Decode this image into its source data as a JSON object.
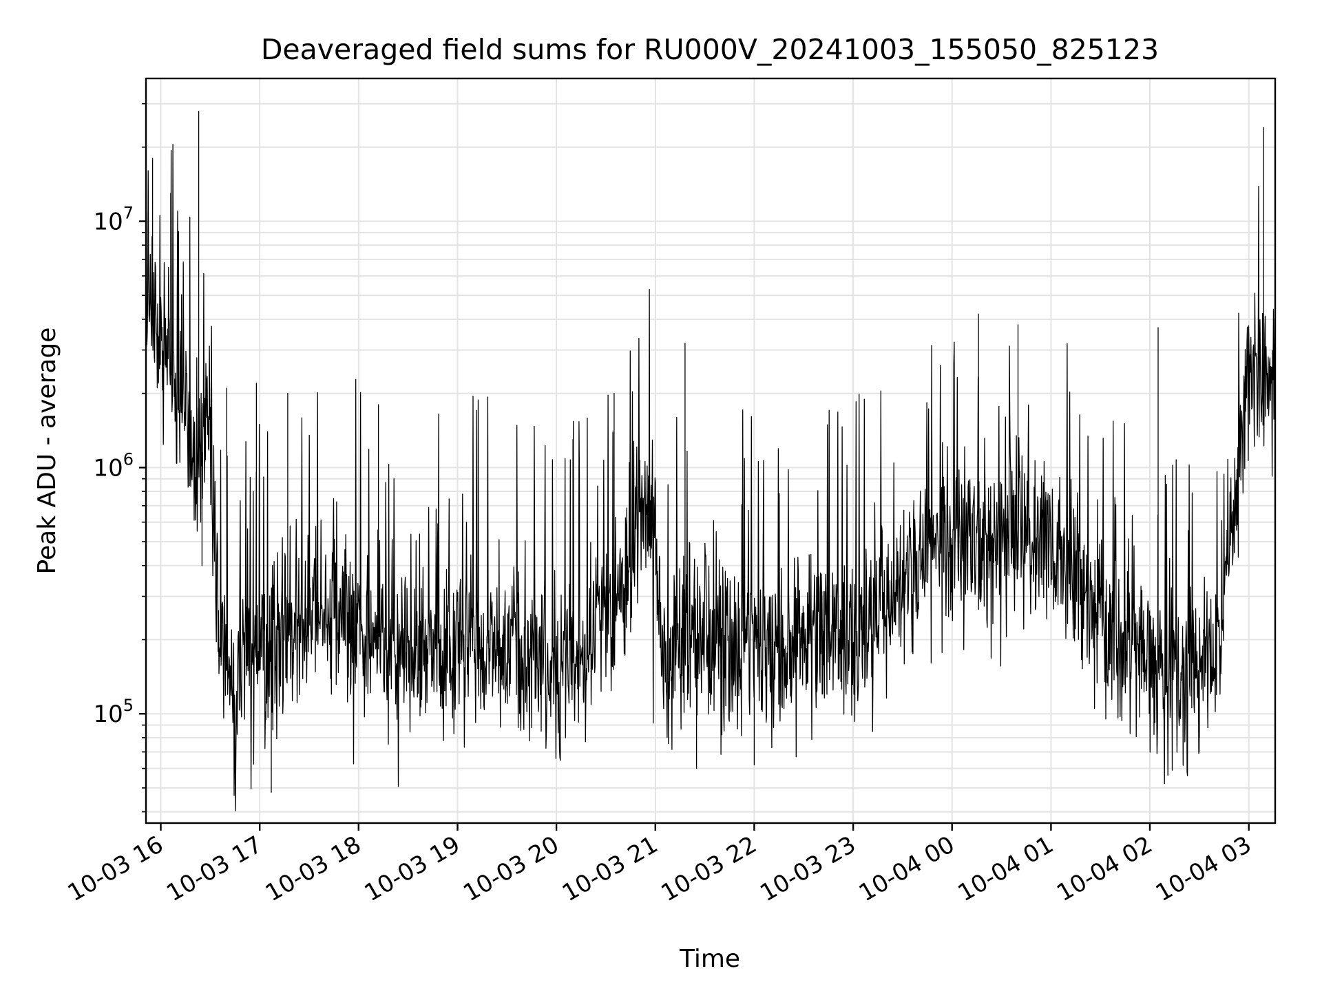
{
  "chart_data": {
    "type": "line",
    "title": "Deaveraged field sums for RU000V_20241003_155050_825123",
    "xlabel": "Time",
    "ylabel": "Peak ADU - average",
    "yscale": "log",
    "grid": true,
    "legend": "none",
    "line_color": "#000000",
    "xlim": [
      "2024-10-03 15:51",
      "2024-10-04 03:16"
    ],
    "ylim": [
      36000,
      38000000
    ],
    "x_ticks": [
      "10-03 16",
      "10-03 17",
      "10-03 18",
      "10-03 19",
      "10-03 20",
      "10-03 21",
      "10-03 22",
      "10-03 23",
      "10-04 00",
      "10-04 01",
      "10-04 02",
      "10-04 03"
    ],
    "y_ticks": [
      {
        "base": "10",
        "exp": "5",
        "value": 100000
      },
      {
        "base": "10",
        "exp": "6",
        "value": 1000000
      },
      {
        "base": "10",
        "exp": "7",
        "value": 10000000
      }
    ],
    "series": [
      {
        "x": [
          "2024-10-03 15:51",
          "2024-10-03 15:55",
          "2024-10-03 16:00",
          "2024-10-03 16:05",
          "2024-10-03 16:10",
          "2024-10-03 16:15",
          "2024-10-03 16:20",
          "2024-10-03 16:24",
          "2024-10-03 16:27",
          "2024-10-03 16:30",
          "2024-10-03 16:33",
          "2024-10-03 16:36",
          "2024-10-03 16:40",
          "2024-10-03 16:45",
          "2024-10-03 16:50",
          "2024-10-03 16:55",
          "2024-10-03 17:00",
          "2024-10-03 17:10",
          "2024-10-03 17:20",
          "2024-10-03 17:30",
          "2024-10-03 17:40",
          "2024-10-03 17:50",
          "2024-10-03 18:00",
          "2024-10-03 18:15",
          "2024-10-03 18:30",
          "2024-10-03 18:45",
          "2024-10-03 19:00",
          "2024-10-03 19:15",
          "2024-10-03 19:30",
          "2024-10-03 19:45",
          "2024-10-03 20:00",
          "2024-10-03 20:15",
          "2024-10-03 20:30",
          "2024-10-03 20:45",
          "2024-10-03 20:50",
          "2024-10-03 21:00",
          "2024-10-03 21:05",
          "2024-10-03 21:15",
          "2024-10-03 21:30",
          "2024-10-03 21:45",
          "2024-10-03 22:00",
          "2024-10-03 22:15",
          "2024-10-03 22:30",
          "2024-10-03 22:45",
          "2024-10-03 23:00",
          "2024-10-03 23:15",
          "2024-10-03 23:30",
          "2024-10-03 23:45",
          "2024-10-04 00:00",
          "2024-10-04 00:15",
          "2024-10-04 00:30",
          "2024-10-04 00:45",
          "2024-10-04 01:00",
          "2024-10-04 01:15",
          "2024-10-04 01:30",
          "2024-10-04 01:45",
          "2024-10-04 02:00",
          "2024-10-04 02:15",
          "2024-10-04 02:30",
          "2024-10-04 02:35",
          "2024-10-04 02:40",
          "2024-10-04 02:45",
          "2024-10-04 02:50",
          "2024-10-04 02:55",
          "2024-10-04 03:00",
          "2024-10-04 03:05",
          "2024-10-04 03:10",
          "2024-10-04 03:16"
        ],
        "values": [
          4000000,
          4200000,
          3600000,
          2800000,
          2100000,
          1700000,
          1300000,
          1000000,
          1500000,
          1700000,
          400000,
          170000,
          150000,
          130000,
          180000,
          150000,
          170000,
          200000,
          210000,
          230000,
          250000,
          250000,
          230000,
          210000,
          190000,
          180000,
          190000,
          200000,
          190000,
          150000,
          130000,
          180000,
          250000,
          350000,
          700000,
          500000,
          160000,
          200000,
          200000,
          190000,
          180000,
          170000,
          200000,
          220000,
          200000,
          250000,
          350000,
          500000,
          500000,
          450000,
          500000,
          600000,
          450000,
          350000,
          250000,
          180000,
          150000,
          140000,
          150000,
          160000,
          170000,
          300000,
          600000,
          1200000,
          2500000,
          2700000,
          2500000,
          2300000
        ],
        "spikes": [
          {
            "x": "2024-10-03 15:55",
            "value": 18000000
          },
          {
            "x": "2024-10-03 16:06",
            "value": 13000000
          },
          {
            "x": "2024-10-03 16:23",
            "value": 28000000
          },
          {
            "x": "2024-10-03 16:25",
            "value": 400000
          },
          {
            "x": "2024-10-03 16:40",
            "value": 2100000
          },
          {
            "x": "2024-10-03 16:58",
            "value": 2200000
          },
          {
            "x": "2024-10-03 17:07",
            "value": 48000
          },
          {
            "x": "2024-10-03 17:17",
            "value": 2000000
          },
          {
            "x": "2024-10-03 18:12",
            "value": 1800000
          },
          {
            "x": "2024-10-03 20:10",
            "value": 1300000
          },
          {
            "x": "2024-10-03 20:35",
            "value": 2000000
          },
          {
            "x": "2024-10-03 21:18",
            "value": 3200000
          },
          {
            "x": "2024-10-03 21:25",
            "value": 60000
          },
          {
            "x": "2024-10-03 22:00",
            "value": 62000
          },
          {
            "x": "2024-10-04 00:16",
            "value": 4200000
          },
          {
            "x": "2024-10-04 00:40",
            "value": 3800000
          },
          {
            "x": "2024-10-04 02:05",
            "value": 3700000
          },
          {
            "x": "2024-10-04 02:30",
            "value": 80000
          },
          {
            "x": "2024-10-04 03:09",
            "value": 24000000
          }
        ]
      }
    ]
  }
}
